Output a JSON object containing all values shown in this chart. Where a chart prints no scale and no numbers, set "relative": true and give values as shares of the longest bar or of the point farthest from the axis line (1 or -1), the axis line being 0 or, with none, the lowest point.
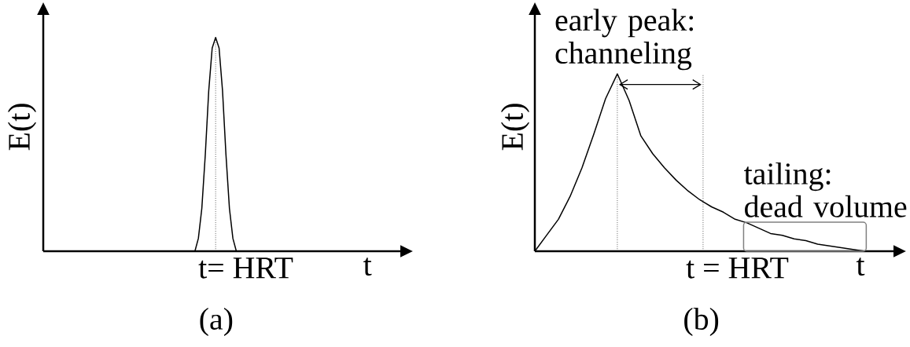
{
  "chart_data": [
    {
      "type": "line",
      "title": "(a)",
      "xlabel": "t",
      "ylabel": "E(t)",
      "relative": true,
      "color": "#000000",
      "categories": [
        null,
        null,
        null,
        null,
        null,
        null,
        null,
        null,
        null,
        null,
        null,
        null,
        null
      ],
      "values": [
        0,
        0.06,
        0.2,
        0.45,
        0.75,
        0.95,
        1,
        0.95,
        0.75,
        0.45,
        0.2,
        0.06,
        0
      ],
      "annotations": [
        "t= HRT"
      ]
    },
    {
      "type": "line",
      "title": "(b)",
      "xlabel": "t",
      "ylabel": "E(t)",
      "relative": true,
      "color": "#000000",
      "categories": [
        null,
        null,
        null,
        null,
        null,
        null,
        null,
        null,
        null,
        null,
        null,
        null,
        null,
        null,
        null,
        null,
        null,
        null,
        null,
        null,
        null,
        null,
        null,
        null,
        null,
        null,
        null,
        null,
        null
      ],
      "values": [
        0,
        0.09,
        0.18,
        0.31,
        0.47,
        0.66,
        0.86,
        1,
        0.85,
        0.65,
        0.55,
        0.47,
        0.4,
        0.34,
        0.29,
        0.25,
        0.22,
        0.18,
        0.16,
        0.13,
        0.1,
        0.09,
        0.07,
        0.06,
        0.04,
        0.03,
        0.02,
        0.01,
        0
      ],
      "annotations": [
        "early peak: channeling",
        "tailing: dead volume",
        "t = HRT"
      ]
    }
  ]
}
